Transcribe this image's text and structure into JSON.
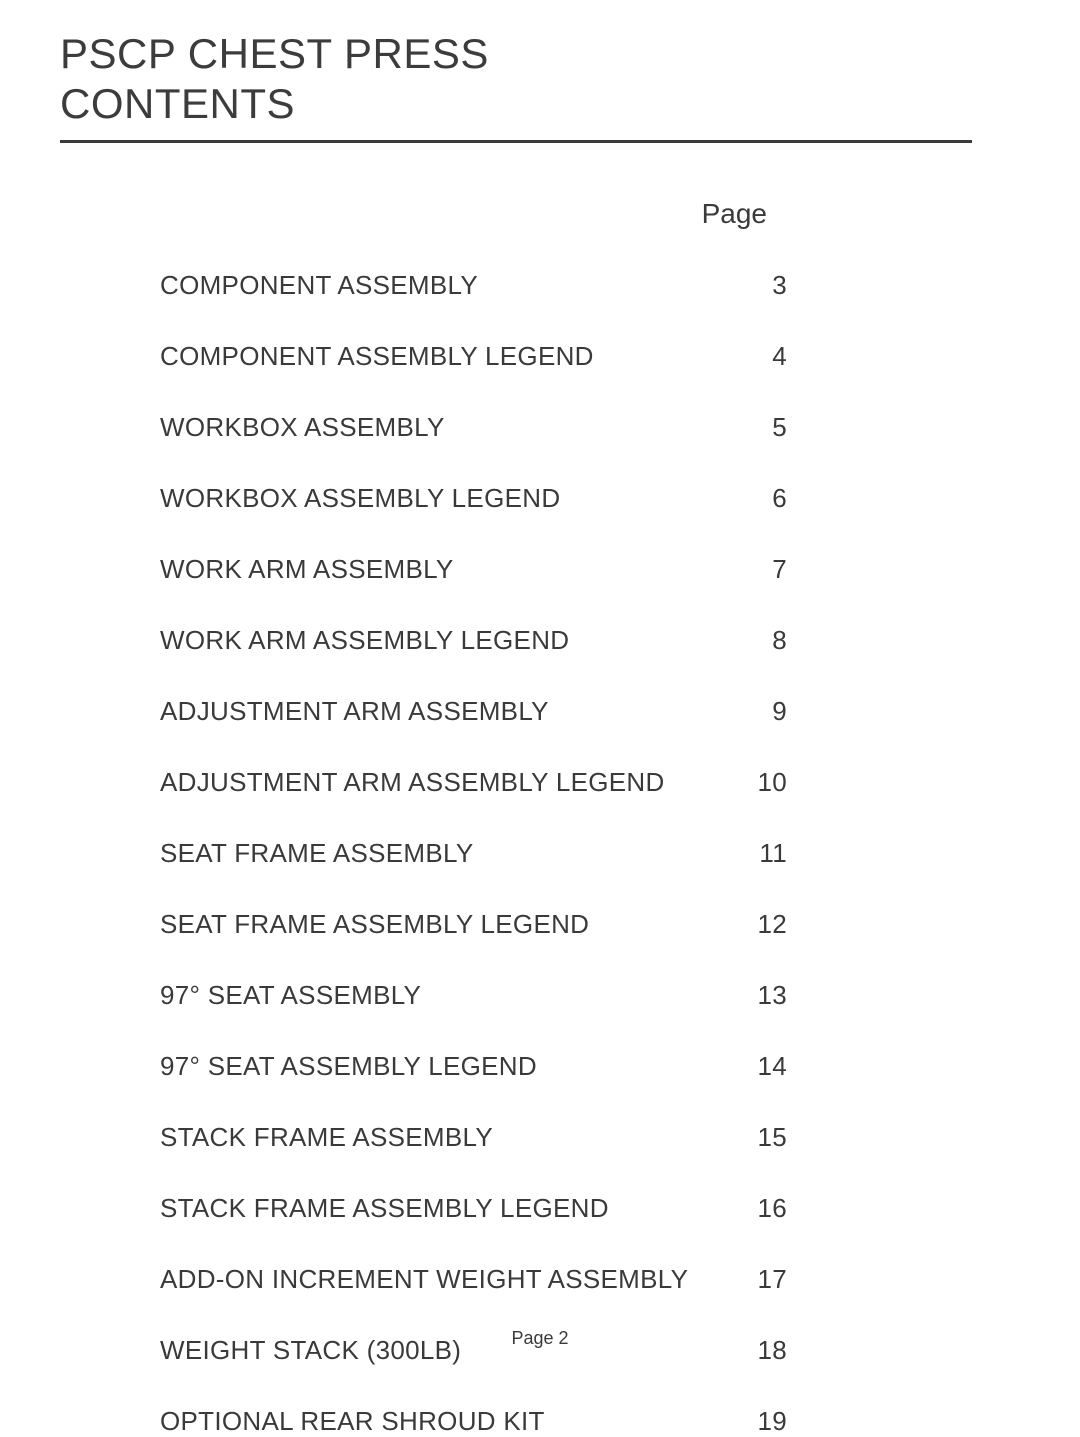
{
  "document": {
    "title_line_1": "PSCP CHEST PRESS",
    "title_line_2": "CONTENTS",
    "page_column_header": "Page",
    "footer_text": "Page 2",
    "title_fontsize": 42,
    "body_fontsize": 26,
    "header_fontsize": 28,
    "footer_fontsize": 18,
    "text_color": "#3a3a3a",
    "background_color": "#ffffff",
    "divider_color": "#3a3a3a",
    "divider_thickness": 3
  },
  "toc": {
    "entries": [
      {
        "title": "COMPONENT ASSEMBLY",
        "page": "3"
      },
      {
        "title": "COMPONENT ASSEMBLY LEGEND",
        "page": "4"
      },
      {
        "title": "WORKBOX ASSEMBLY",
        "page": "5"
      },
      {
        "title": "WORKBOX ASSEMBLY LEGEND",
        "page": "6"
      },
      {
        "title": "WORK ARM ASSEMBLY",
        "page": "7"
      },
      {
        "title": "WORK ARM ASSEMBLY LEGEND",
        "page": "8"
      },
      {
        "title": "ADJUSTMENT ARM ASSEMBLY",
        "page": "9"
      },
      {
        "title": "ADJUSTMENT ARM ASSEMBLY LEGEND",
        "page": "10"
      },
      {
        "title": "SEAT FRAME ASSEMBLY",
        "page": "11"
      },
      {
        "title": "SEAT FRAME ASSEMBLY LEGEND",
        "page": "12"
      },
      {
        "title": "97° SEAT ASSEMBLY",
        "page": "13"
      },
      {
        "title": "97° SEAT ASSEMBLY   LEGEND",
        "page": "14"
      },
      {
        "title": "STACK FRAME ASSEMBLY",
        "page": "15"
      },
      {
        "title": "STACK FRAME ASSEMBLY LEGEND",
        "page": "16"
      },
      {
        "title": "ADD-ON INCREMENT WEIGHT ASSEMBLY",
        "page": "17"
      },
      {
        "title": "WEIGHT STACK (300LB)",
        "page": "18"
      },
      {
        "title": "OPTIONAL REAR SHROUD KIT",
        "page": "19"
      }
    ]
  }
}
